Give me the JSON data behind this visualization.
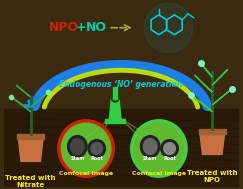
{
  "bg_color": "#3a2a10",
  "npo_text": "NPO",
  "plus_text": "+",
  "no_text": "NO",
  "endogenous_text": "Endogenous ‘NO’ generation",
  "label_left": "Treated with\nNitrate",
  "label_right": "Treated with\nNPO",
  "confocal_left": "Confocal Image",
  "confocal_right": "Confocal Image",
  "stem_label": "Stem",
  "root_label": "Root",
  "npo_color": "#cc2200",
  "plus_color": "#00ccaa",
  "no_color": "#00ccaa",
  "endogenous_color": "#00ccdd",
  "label_color": "#ffee00",
  "confocal_color": "#ffee00",
  "molecule_color": "#00ccdd",
  "arc_color_outer": "#1a88ff",
  "arc_color_inner": "#ccee00",
  "arrow_color": "#1a88ff",
  "circle_left_color": "#66cc33",
  "circle_right_color": "#66cc33",
  "circle_left_edge": "#cc2200",
  "circle_right_edge": "#44cc44",
  "pot_color": "#c87040",
  "pot_rim_color": "#a06030",
  "plant_color_left": "#33aa44",
  "plant_color_right": "#33cc44",
  "stem_color": "#226622",
  "microscope_color": "#33cc44",
  "wood_color": "#2a1a08",
  "wood_grain_color": "#1a0e04",
  "mol_glow_color": "#00ccdd",
  "dashed_arrow_color": "#aaaa44"
}
